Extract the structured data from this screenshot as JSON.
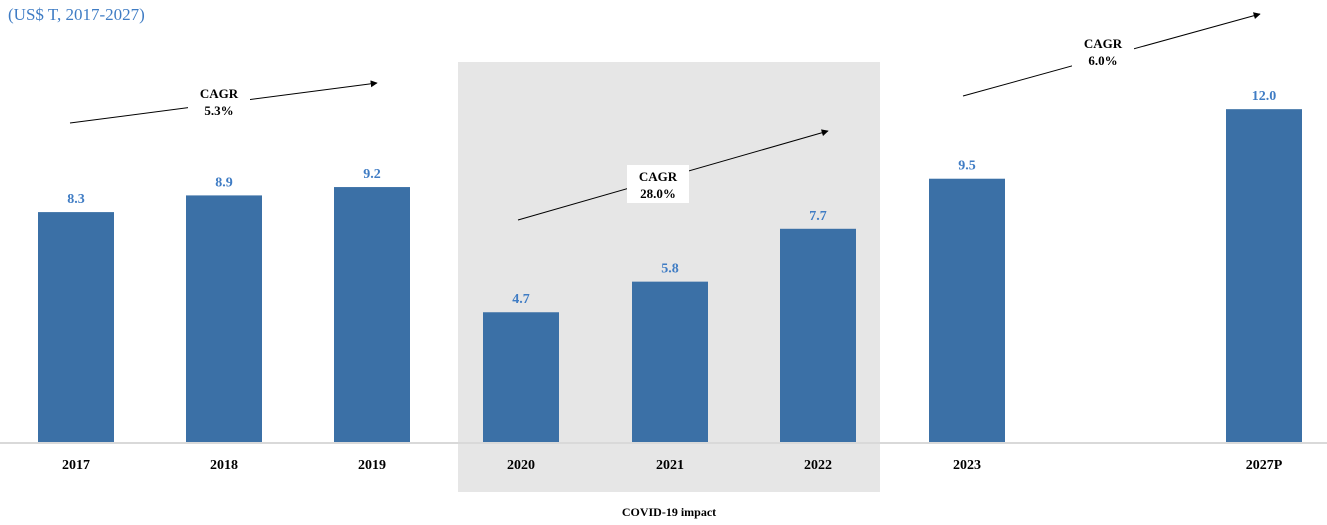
{
  "chart_data": {
    "type": "bar",
    "title": "",
    "subtitle": "(US$ T, 2017-2027)",
    "xlabel": "",
    "ylabel": "",
    "categories": [
      "2017",
      "2018",
      "2019",
      "2020",
      "2021",
      "2022",
      "2023",
      "2027P"
    ],
    "values": [
      8.3,
      8.9,
      9.2,
      4.7,
      5.8,
      7.7,
      9.5,
      12.0
    ],
    "value_labels": [
      "8.3",
      "8.9",
      "9.2",
      "4.7",
      "5.8",
      "7.7",
      "9.5",
      "12.0"
    ],
    "ylim": [
      0,
      13.3
    ],
    "grid": false,
    "legend": "none",
    "bar_color": "#3b70a6",
    "value_label_color": "#3f7cc4",
    "highlight_region": {
      "label": "COVID-19 impact",
      "categories": [
        "2020",
        "2021",
        "2022"
      ],
      "color": "#e6e6e6"
    },
    "annotations": [
      {
        "label": "CAGR",
        "value": "5.3%",
        "from": "2017",
        "to": "2019"
      },
      {
        "label": "CAGR",
        "value": "28.0%",
        "from": "2020",
        "to": "2022"
      },
      {
        "label": "CAGR",
        "value": "6.0%",
        "from": "2023",
        "to": "2027P"
      }
    ]
  }
}
